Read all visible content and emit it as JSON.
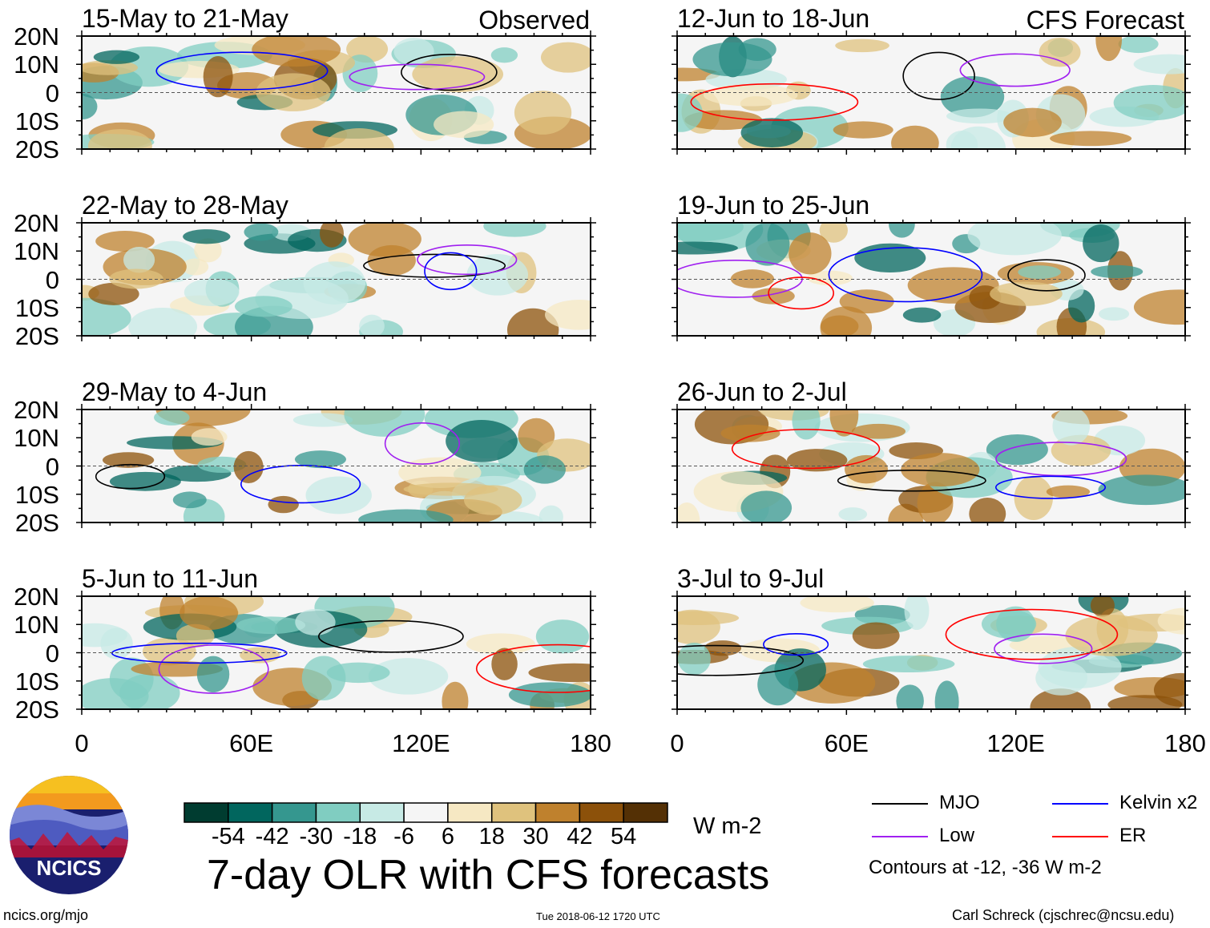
{
  "chart_data": {
    "type": "heatmap",
    "title": "7-day OLR with CFS forecasts",
    "units": "W m-2",
    "colorbar": {
      "ticks": [
        "-54",
        "-42",
        "-30",
        "-18",
        "-6",
        "6",
        "18",
        "30",
        "42",
        "54"
      ],
      "colors": [
        "#003c30",
        "#01665e",
        "#35978f",
        "#80cdc1",
        "#c7eae5",
        "#f5f5f5",
        "#f6e8c3",
        "#dfc27d",
        "#bf812d",
        "#8c510a",
        "#543005"
      ]
    },
    "xaxis": {
      "range": [
        0,
        180
      ],
      "ticks": [
        "0",
        "60E",
        "120E",
        "180"
      ]
    },
    "yaxis": {
      "range": [
        -20,
        20
      ],
      "ticks": [
        "20N",
        "10N",
        "0",
        "10S",
        "20S"
      ]
    },
    "columns": [
      {
        "label": "Observed",
        "panels": [
          "15-May to 21-May",
          "22-May to 28-May",
          "29-May to 4-Jun",
          "5-Jun to 11-Jun"
        ]
      },
      {
        "label": "CFS Forecast",
        "panels": [
          "12-Jun to 18-Jun",
          "19-Jun to 25-Jun",
          "26-Jun to 2-Jul",
          "3-Jul to 9-Jul"
        ]
      }
    ],
    "legend": [
      {
        "name": "MJO",
        "color": "#000000"
      },
      {
        "name": "Kelvin x2",
        "color": "#0000ff"
      },
      {
        "name": "Low",
        "color": "#a020f0"
      },
      {
        "name": "ER",
        "color": "#ff0000"
      }
    ],
    "contour_note": "Contours at -12, -36 W m-2"
  },
  "footer": {
    "logo_text": "NCICS",
    "url": "ncics.org/mjo",
    "timestamp": "Tue 2018-06-12 1720 UTC",
    "credit": "Carl Schreck (cjschrec@ncsu.edu)"
  }
}
